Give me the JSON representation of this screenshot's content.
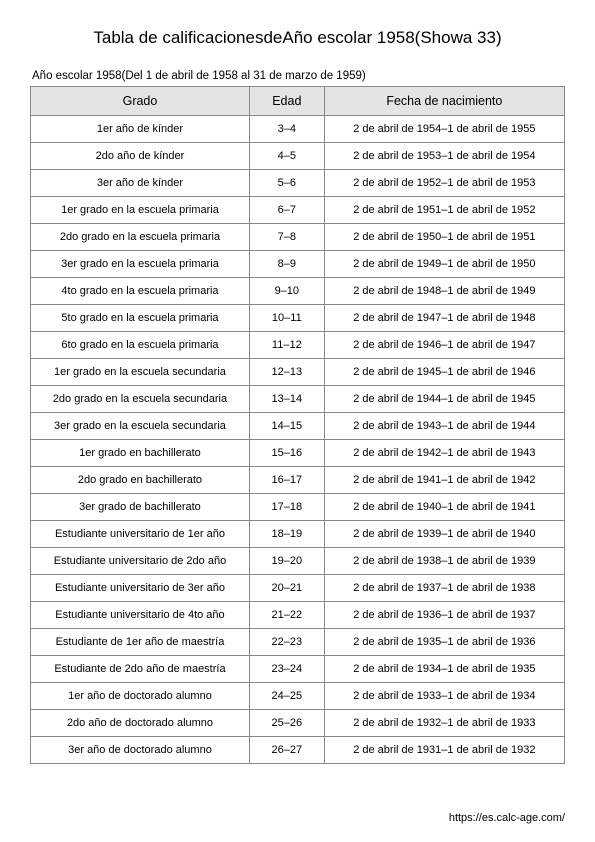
{
  "title": "Tabla de calificacionesdeAño escolar 1958(Showa 33)",
  "subtitle": "Año escolar 1958(Del 1 de abril de 1958 al 31 de marzo de 1959)",
  "footer": "https://es.calc-age.com/",
  "table": {
    "columns": [
      "Grado",
      "Edad",
      "Fecha de nacimiento"
    ],
    "column_widths_pct": [
      41,
      14,
      45
    ],
    "header_bg": "#e4e4e4",
    "border_color": "#888888",
    "rows": [
      [
        "1er año de kínder",
        "3–4",
        "2 de abril de 1954–1 de abril de 1955"
      ],
      [
        "2do año de kínder",
        "4–5",
        "2 de abril de 1953–1 de abril de 1954"
      ],
      [
        "3er año de kínder",
        "5–6",
        "2 de abril de 1952–1 de abril de 1953"
      ],
      [
        "1er grado en la escuela primaria",
        "6–7",
        "2 de abril de 1951–1 de abril de 1952"
      ],
      [
        "2do grado en la escuela primaria",
        "7–8",
        "2 de abril de 1950–1 de abril de 1951"
      ],
      [
        "3er grado en la escuela primaria",
        "8–9",
        "2 de abril de 1949–1 de abril de 1950"
      ],
      [
        "4to grado en la escuela primaria",
        "9–10",
        "2 de abril de 1948–1 de abril de 1949"
      ],
      [
        "5to grado en la escuela primaria",
        "10–11",
        "2 de abril de 1947–1 de abril de 1948"
      ],
      [
        "6to grado en la escuela primaria",
        "11–12",
        "2 de abril de 1946–1 de abril de 1947"
      ],
      [
        "1er grado en la escuela secundaria",
        "12–13",
        "2 de abril de 1945–1 de abril de 1946"
      ],
      [
        "2do grado en la escuela secundaria",
        "13–14",
        "2 de abril de 1944–1 de abril de 1945"
      ],
      [
        "3er grado en la escuela secundaria",
        "14–15",
        "2 de abril de 1943–1 de abril de 1944"
      ],
      [
        "1er grado en bachillerato",
        "15–16",
        "2 de abril de 1942–1 de abril de 1943"
      ],
      [
        "2do grado en bachillerato",
        "16–17",
        "2 de abril de 1941–1 de abril de 1942"
      ],
      [
        "3er grado de bachillerato",
        "17–18",
        "2 de abril de 1940–1 de abril de 1941"
      ],
      [
        "Estudiante universitario de 1er año",
        "18–19",
        "2 de abril de 1939–1 de abril de 1940"
      ],
      [
        "Estudiante universitario de 2do año",
        "19–20",
        "2 de abril de 1938–1 de abril de 1939"
      ],
      [
        "Estudiante universitario de 3er año",
        "20–21",
        "2 de abril de 1937–1 de abril de 1938"
      ],
      [
        "Estudiante universitario de 4to año",
        "21–22",
        "2 de abril de 1936–1 de abril de 1937"
      ],
      [
        "Estudiante de 1er año de maestría",
        "22–23",
        "2 de abril de 1935–1 de abril de 1936"
      ],
      [
        "Estudiante de 2do año de maestría",
        "23–24",
        "2 de abril de 1934–1 de abril de 1935"
      ],
      [
        "1er año de doctorado alumno",
        "24–25",
        "2 de abril de 1933–1 de abril de 1934"
      ],
      [
        "2do año de doctorado alumno",
        "25–26",
        "2 de abril de 1932–1 de abril de 1933"
      ],
      [
        "3er año de doctorado alumno",
        "26–27",
        "2 de abril de 1931–1 de abril de 1932"
      ]
    ]
  }
}
